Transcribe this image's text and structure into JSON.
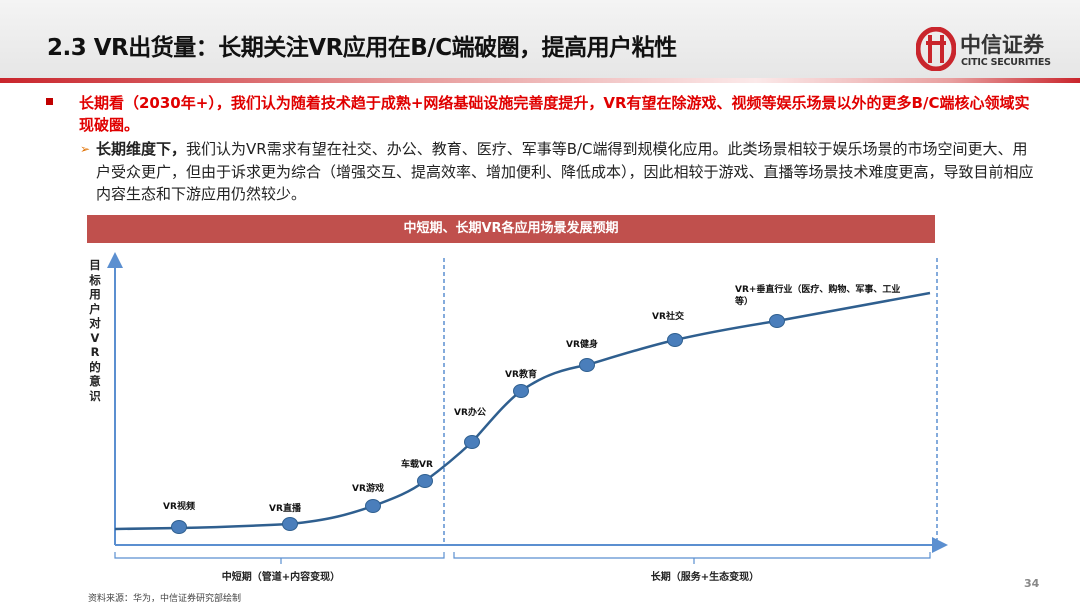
{
  "header": {
    "title": "2.3 VR出货量：长期关注VR应用在B/C端破圈，提高用户粘性",
    "logo_brand": "中信证券",
    "logo_en": "CITIC SECURITIES"
  },
  "body": {
    "point1": "长期看（2030年+），我们认为随着技术趋于成熟+网络基础设施完善度提升，VR有望在除游戏、视频等娱乐场景以外的更多B/C端核心领域实现破圈。",
    "point2_lead": "长期维度下，",
    "point2_text": "我们认为VR需求有望在社交、办公、教育、医疗、军事等B/C端得到规模化应用。此类场景相较于娱乐场景的市场空间更大、用户受众更广，但由于诉求更为综合（增强交互、提高效率、增加便利、降低成本），因此相较于游戏、直播等场景技术难度更高，导致目前相应内容生态和下游应用仍然较少。"
  },
  "diagram": {
    "banner": "中短期、长期VR各应用场景发展预期",
    "y_label": "目标用户对VR的意识",
    "phases": [
      "中短期（管道+内容变现）",
      "长期（服务+生态变现）"
    ],
    "stages": [
      "VR视频",
      "VR直播",
      "VR游戏",
      "车载VR",
      "VR办公",
      "VR教育",
      "VR健身",
      "VR社交",
      "VR+垂直行业（医疗、购物、军事、工业等）"
    ],
    "line_color": "#2f5f8f",
    "marker_color": "#4a7ebb",
    "axis_color": "#5b8fd0",
    "banner_color": "#c0504d"
  },
  "footer": {
    "source": "资料来源：华为，中信证券研究部绘制",
    "page": "34"
  }
}
